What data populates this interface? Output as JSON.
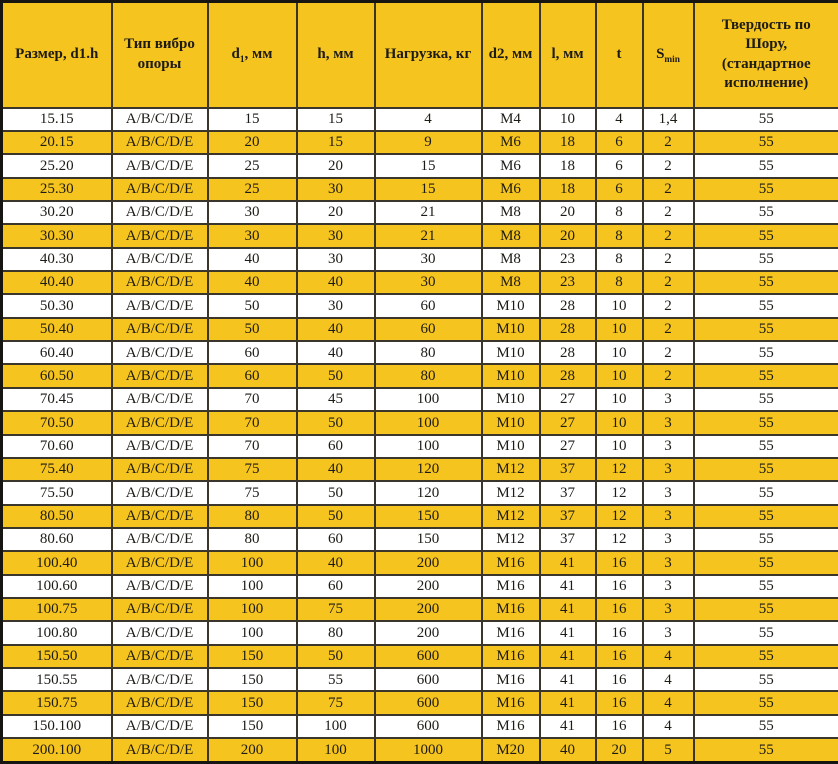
{
  "colors": {
    "gold": "#F6C41E",
    "row_white": "#FFFFFF",
    "grid_border": "#3A362C",
    "outer_border": "#171512",
    "text": "#1D1B16"
  },
  "table": {
    "headers": [
      {
        "key": "size",
        "pre": "Размер, d1.h",
        "sub": "",
        "post": ""
      },
      {
        "key": "mounttype",
        "pre": "Тип вибро опоры",
        "sub": "",
        "post": ""
      },
      {
        "key": "d1",
        "pre": "d",
        "sub": "1",
        "post": ", мм"
      },
      {
        "key": "h",
        "pre": "h, мм",
        "sub": "",
        "post": ""
      },
      {
        "key": "load",
        "pre": "Нагрузка, кг",
        "sub": "",
        "post": ""
      },
      {
        "key": "d2",
        "pre": "d2, мм",
        "sub": "",
        "post": ""
      },
      {
        "key": "l",
        "pre": "l, мм",
        "sub": "",
        "post": ""
      },
      {
        "key": "t",
        "pre": "t",
        "sub": "",
        "post": ""
      },
      {
        "key": "smin",
        "pre": "S",
        "sub": "min",
        "post": ""
      },
      {
        "key": "hardness",
        "pre": "Твердость по Шору, (стандартное исполнение)",
        "sub": "",
        "post": ""
      }
    ],
    "rows": [
      [
        "15.15",
        "A/B/C/D/E",
        "15",
        "15",
        "4",
        "M4",
        "10",
        "4",
        "1,4",
        "55"
      ],
      [
        "20.15",
        "A/B/C/D/E",
        "20",
        "15",
        "9",
        "M6",
        "18",
        "6",
        "2",
        "55"
      ],
      [
        "25.20",
        "A/B/C/D/E",
        "25",
        "20",
        "15",
        "M6",
        "18",
        "6",
        "2",
        "55"
      ],
      [
        "25.30",
        "A/B/C/D/E",
        "25",
        "30",
        "15",
        "M6",
        "18",
        "6",
        "2",
        "55"
      ],
      [
        "30.20",
        "A/B/C/D/E",
        "30",
        "20",
        "21",
        "M8",
        "20",
        "8",
        "2",
        "55"
      ],
      [
        "30.30",
        "A/B/C/D/E",
        "30",
        "30",
        "21",
        "M8",
        "20",
        "8",
        "2",
        "55"
      ],
      [
        "40.30",
        "A/B/C/D/E",
        "40",
        "30",
        "30",
        "M8",
        "23",
        "8",
        "2",
        "55"
      ],
      [
        "40.40",
        "A/B/C/D/E",
        "40",
        "40",
        "30",
        "M8",
        "23",
        "8",
        "2",
        "55"
      ],
      [
        "50.30",
        "A/B/C/D/E",
        "50",
        "30",
        "60",
        "M10",
        "28",
        "10",
        "2",
        "55"
      ],
      [
        "50.40",
        "A/B/C/D/E",
        "50",
        "40",
        "60",
        "M10",
        "28",
        "10",
        "2",
        "55"
      ],
      [
        "60.40",
        "A/B/C/D/E",
        "60",
        "40",
        "80",
        "M10",
        "28",
        "10",
        "2",
        "55"
      ],
      [
        "60.50",
        "A/B/C/D/E",
        "60",
        "50",
        "80",
        "M10",
        "28",
        "10",
        "2",
        "55"
      ],
      [
        "70.45",
        "A/B/C/D/E",
        "70",
        "45",
        "100",
        "M10",
        "27",
        "10",
        "3",
        "55"
      ],
      [
        "70.50",
        "A/B/C/D/E",
        "70",
        "50",
        "100",
        "M10",
        "27",
        "10",
        "3",
        "55"
      ],
      [
        "70.60",
        "A/B/C/D/E",
        "70",
        "60",
        "100",
        "M10",
        "27",
        "10",
        "3",
        "55"
      ],
      [
        "75.40",
        "A/B/C/D/E",
        "75",
        "40",
        "120",
        "M12",
        "37",
        "12",
        "3",
        "55"
      ],
      [
        "75.50",
        "A/B/C/D/E",
        "75",
        "50",
        "120",
        "M12",
        "37",
        "12",
        "3",
        "55"
      ],
      [
        "80.50",
        "A/B/C/D/E",
        "80",
        "50",
        "150",
        "M12",
        "37",
        "12",
        "3",
        "55"
      ],
      [
        "80.60",
        "A/B/C/D/E",
        "80",
        "60",
        "150",
        "M12",
        "37",
        "12",
        "3",
        "55"
      ],
      [
        "100.40",
        "A/B/C/D/E",
        "100",
        "40",
        "200",
        "M16",
        "41",
        "16",
        "3",
        "55"
      ],
      [
        "100.60",
        "A/B/C/D/E",
        "100",
        "60",
        "200",
        "M16",
        "41",
        "16",
        "3",
        "55"
      ],
      [
        "100.75",
        "A/B/C/D/E",
        "100",
        "75",
        "200",
        "M16",
        "41",
        "16",
        "3",
        "55"
      ],
      [
        "100.80",
        "A/B/C/D/E",
        "100",
        "80",
        "200",
        "M16",
        "41",
        "16",
        "3",
        "55"
      ],
      [
        "150.50",
        "A/B/C/D/E",
        "150",
        "50",
        "600",
        "M16",
        "41",
        "16",
        "4",
        "55"
      ],
      [
        "150.55",
        "A/B/C/D/E",
        "150",
        "55",
        "600",
        "M16",
        "41",
        "16",
        "4",
        "55"
      ],
      [
        "150.75",
        "A/B/C/D/E",
        "150",
        "75",
        "600",
        "M16",
        "41",
        "16",
        "4",
        "55"
      ],
      [
        "150.100",
        "A/B/C/D/E",
        "150",
        "100",
        "600",
        "M16",
        "41",
        "16",
        "4",
        "55"
      ],
      [
        "200.100",
        "A/B/C/D/E",
        "200",
        "100",
        "1000",
        "M20",
        "40",
        "20",
        "5",
        "55"
      ]
    ]
  }
}
